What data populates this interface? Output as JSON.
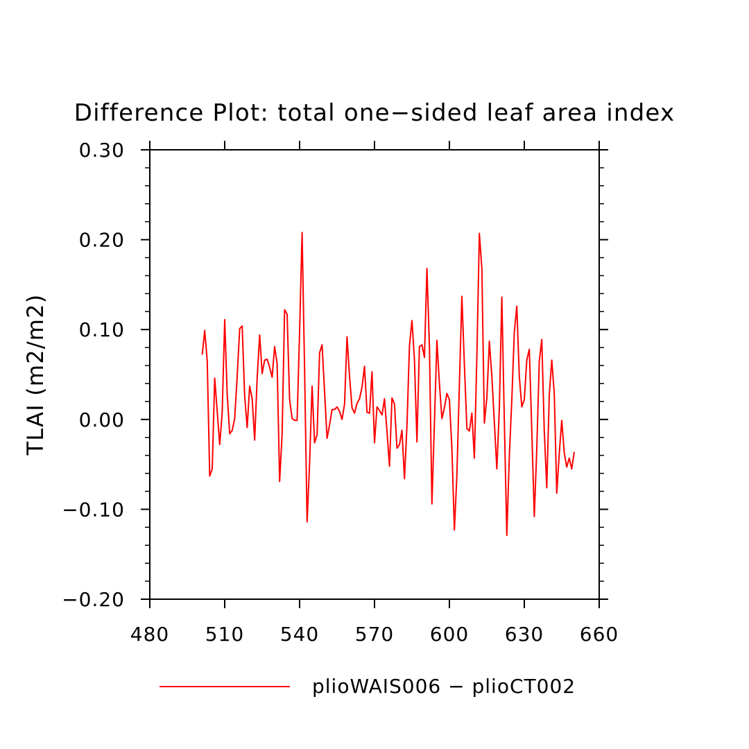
{
  "chart_data": {
    "type": "line",
    "title": "Difference Plot: total one−sided leaf area index",
    "xlabel": "",
    "ylabel": "TLAI  (m2/m2)",
    "xlim": [
      480,
      660
    ],
    "ylim": [
      -0.2,
      0.3
    ],
    "x_ticks": [
      "480",
      "510",
      "540",
      "570",
      "600",
      "630",
      "660"
    ],
    "y_ticks": [
      "−0.20",
      "−0.10",
      "0.00",
      "0.10",
      "0.20",
      "0.30"
    ],
    "grid": false,
    "legend_position": "bottom",
    "series": [
      {
        "name": "plioWAIS006 − plioCT002",
        "color": "#ff0000",
        "x": [
          501,
          502,
          503,
          504,
          505,
          506,
          507,
          508,
          509,
          510,
          511,
          512,
          513,
          514,
          515,
          516,
          517,
          518,
          519,
          520,
          521,
          522,
          523,
          524,
          525,
          526,
          527,
          528,
          529,
          530,
          531,
          532,
          533,
          534,
          535,
          536,
          537,
          538,
          539,
          540,
          541,
          542,
          543,
          544,
          545,
          546,
          547,
          548,
          549,
          550,
          551,
          552,
          553,
          554,
          555,
          556,
          557,
          558,
          559,
          560,
          561,
          562,
          563,
          564,
          565,
          566,
          567,
          568,
          569,
          570,
          571,
          572,
          573,
          574,
          575,
          576,
          577,
          578,
          579,
          580,
          581,
          582,
          583,
          584,
          585,
          586,
          587,
          588,
          589,
          590,
          591,
          592,
          593,
          594,
          595,
          596,
          597,
          598,
          599,
          600,
          601,
          602,
          603,
          604,
          605,
          606,
          607,
          608,
          609,
          610,
          611,
          612,
          613,
          614,
          615,
          616,
          617,
          618,
          619,
          620,
          621,
          622,
          623,
          624,
          625,
          626,
          627,
          628,
          629,
          630,
          631,
          632,
          633,
          634,
          635,
          636,
          637,
          638,
          639,
          640,
          641,
          642,
          643,
          644,
          645,
          646,
          647,
          648,
          649,
          650
        ],
        "values": [
          0.072,
          0.099,
          0.065,
          -0.063,
          -0.055,
          0.046,
          0.009,
          -0.028,
          0.008,
          0.111,
          0.028,
          -0.016,
          -0.012,
          0.001,
          0.048,
          0.101,
          0.104,
          0.026,
          -0.009,
          0.037,
          0.023,
          -0.023,
          0.046,
          0.094,
          0.051,
          0.066,
          0.067,
          0.058,
          0.047,
          0.081,
          0.062,
          -0.069,
          -0.016,
          0.122,
          0.117,
          0.022,
          0.001,
          -0.001,
          -0.001,
          0.098,
          0.208,
          0.055,
          -0.114,
          -0.049,
          0.037,
          -0.026,
          -0.017,
          0.074,
          0.083,
          0.031,
          -0.021,
          -0.006,
          0.011,
          0.011,
          0.014,
          0.009,
          0.0,
          0.017,
          0.092,
          0.048,
          0.013,
          0.007,
          0.018,
          0.023,
          0.036,
          0.059,
          0.008,
          0.007,
          0.053,
          -0.026,
          0.014,
          0.01,
          0.005,
          0.023,
          -0.013,
          -0.052,
          0.024,
          0.017,
          -0.032,
          -0.028,
          -0.012,
          -0.066,
          -0.007,
          0.082,
          0.11,
          0.067,
          -0.025,
          0.081,
          0.083,
          0.069,
          0.168,
          0.081,
          -0.094,
          -0.004,
          0.088,
          0.04,
          0.001,
          0.013,
          0.029,
          0.022,
          -0.032,
          -0.123,
          -0.062,
          0.039,
          0.137,
          0.061,
          -0.01,
          -0.013,
          0.007,
          -0.043,
          0.07,
          0.207,
          0.168,
          -0.004,
          0.024,
          0.087,
          0.048,
          -0.003,
          -0.055,
          0.012,
          0.136,
          -0.001,
          -0.129,
          -0.041,
          0.022,
          0.097,
          0.126,
          0.048,
          0.014,
          0.022,
          0.066,
          0.078,
          -0.012,
          -0.108,
          -0.033,
          0.065,
          0.089,
          -0.013,
          -0.076,
          0.027,
          0.066,
          0.029,
          -0.082,
          -0.038,
          -0.001,
          -0.037,
          -0.053,
          -0.043,
          -0.055,
          -0.036
        ]
      }
    ]
  }
}
